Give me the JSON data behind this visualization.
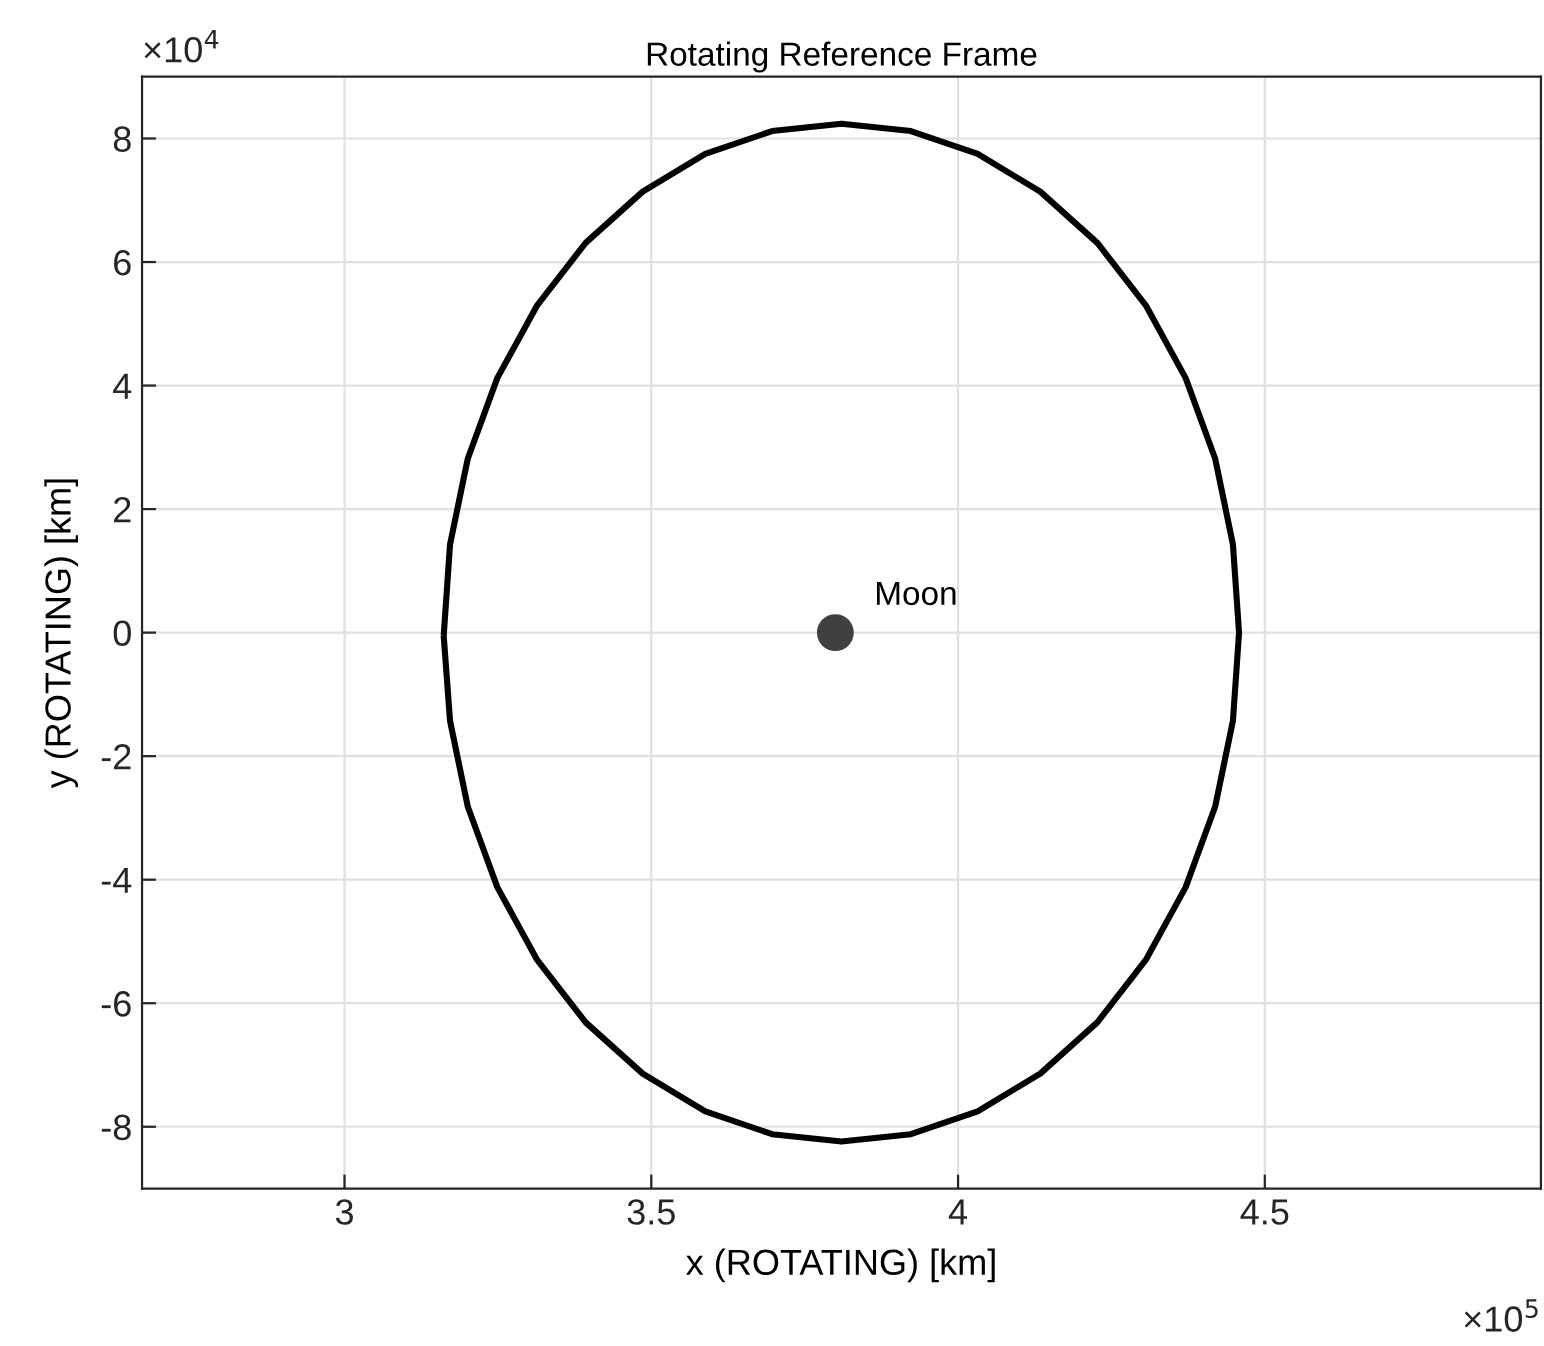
{
  "chart_data": {
    "type": "line",
    "title": "Rotating Reference Frame",
    "xlabel": "x (ROTATING) [km]",
    "ylabel": "y (ROTATING) [km]",
    "xlim": [
      2.67,
      4.95
    ],
    "ylim": [
      -9,
      9
    ],
    "xticks": [
      3,
      3.5,
      4,
      4.5
    ],
    "yticks": [
      -8,
      -6,
      -4,
      -2,
      0,
      2,
      4,
      6,
      8
    ],
    "grid": true,
    "line_style": "solid",
    "series": [
      {
        "color": "#000000",
        "x": [
          3.162,
          3.172,
          3.201,
          3.249,
          3.314,
          3.393,
          3.486,
          3.588,
          3.697,
          3.81,
          3.923,
          4.032,
          4.134,
          4.227,
          4.306,
          4.371,
          4.419,
          4.448,
          4.458,
          4.448,
          4.419,
          4.371,
          4.306,
          4.227,
          4.134,
          4.032,
          3.923,
          3.81,
          3.697,
          3.588,
          3.486,
          3.393,
          3.314,
          3.249,
          3.201,
          3.172,
          3.162
        ],
        "values": [
          0,
          1.43,
          2.82,
          4.12,
          5.3,
          6.31,
          7.14,
          7.75,
          8.12,
          8.24,
          8.12,
          7.75,
          7.14,
          6.31,
          5.3,
          4.12,
          2.82,
          1.43,
          0,
          -1.43,
          -2.82,
          -4.12,
          -5.3,
          -6.31,
          -7.14,
          -7.75,
          -8.12,
          -8.24,
          -8.12,
          -7.75,
          -7.14,
          -6.31,
          -5.3,
          -4.12,
          -2.82,
          -1.43,
          -0.1
        ]
      },
      {
        "type": "scatter",
        "color": "#404040",
        "x": [
          3.8
        ],
        "values": [
          0
        ]
      }
    ],
    "annotations": [
      {
        "text": "Moon",
        "x": 3.8,
        "y": 0
      },
      "×10$^{4}$",
      "×10$^{5}$"
    ]
  }
}
